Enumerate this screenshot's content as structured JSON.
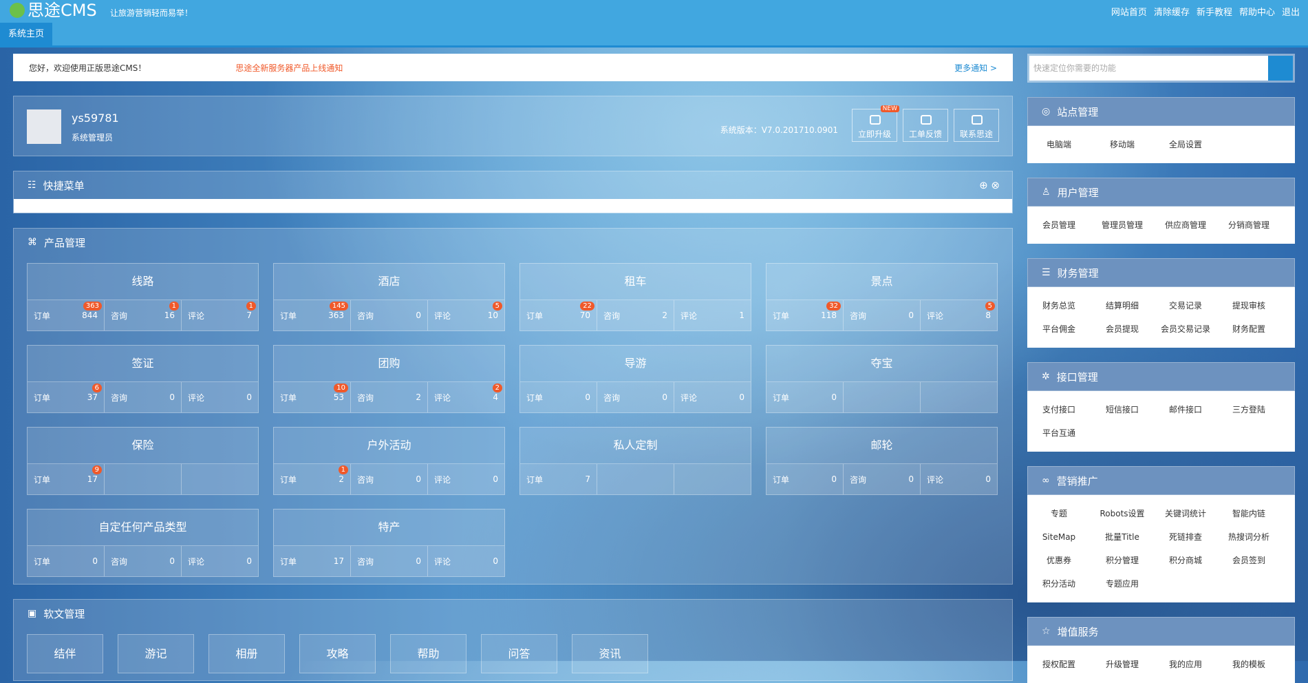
{
  "header": {
    "logo": "思途CMS",
    "slogan": "让旅游营销轻而易举！",
    "nav": [
      "网站首页",
      "清除缓存",
      "新手教程",
      "帮助中心",
      "退出"
    ],
    "tab": "系统主页"
  },
  "notice": {
    "welcome": "您好，欢迎使用正版思途CMS！",
    "news": "思途全新服务器产品上线通知",
    "more": "更多通知 >"
  },
  "search": {
    "placeholder": "快速定位你需要的功能"
  },
  "user": {
    "name": "ys59781",
    "role": "系统管理员",
    "version": "系统版本：V7.0.201710.0901",
    "badge": "NEW",
    "buttons": [
      "立即升级",
      "工单反馈",
      "联系思途"
    ]
  },
  "quick_menu": {
    "title": "快捷菜单"
  },
  "products": {
    "title": "产品管理",
    "items": [
      {
        "name": "线路",
        "stats": [
          {
            "label": "订单",
            "value": 844,
            "badge": 363
          },
          {
            "label": "咨询",
            "value": 16,
            "badge": 1
          },
          {
            "label": "评论",
            "value": 7,
            "badge": 1
          }
        ]
      },
      {
        "name": "酒店",
        "stats": [
          {
            "label": "订单",
            "value": 363,
            "badge": 145
          },
          {
            "label": "咨询",
            "value": 0
          },
          {
            "label": "评论",
            "value": 10,
            "badge": 5
          }
        ]
      },
      {
        "name": "租车",
        "stats": [
          {
            "label": "订单",
            "value": 70,
            "badge": 22
          },
          {
            "label": "咨询",
            "value": 2
          },
          {
            "label": "评论",
            "value": 1
          }
        ]
      },
      {
        "name": "景点",
        "stats": [
          {
            "label": "订单",
            "value": 118,
            "badge": 32
          },
          {
            "label": "咨询",
            "value": 0
          },
          {
            "label": "评论",
            "value": 8,
            "badge": 5
          }
        ]
      },
      {
        "name": "签证",
        "stats": [
          {
            "label": "订单",
            "value": 37,
            "badge": 6
          },
          {
            "label": "咨询",
            "value": 0
          },
          {
            "label": "评论",
            "value": 0
          }
        ]
      },
      {
        "name": "团购",
        "stats": [
          {
            "label": "订单",
            "value": 53,
            "badge": 10
          },
          {
            "label": "咨询",
            "value": 2
          },
          {
            "label": "评论",
            "value": 4,
            "badge": 2
          }
        ]
      },
      {
        "name": "导游",
        "stats": [
          {
            "label": "订单",
            "value": 0
          },
          {
            "label": "咨询",
            "value": 0
          },
          {
            "label": "评论",
            "value": 0
          }
        ]
      },
      {
        "name": "夺宝",
        "stats": [
          {
            "label": "订单",
            "value": 0
          }
        ]
      },
      {
        "name": "保险",
        "stats": [
          {
            "label": "订单",
            "value": 17,
            "badge": 9
          }
        ]
      },
      {
        "name": "户外活动",
        "stats": [
          {
            "label": "订单",
            "value": 2,
            "badge": 1
          },
          {
            "label": "咨询",
            "value": 0
          },
          {
            "label": "评论",
            "value": 0
          }
        ]
      },
      {
        "name": "私人定制",
        "stats": [
          {
            "label": "订单",
            "value": 7
          }
        ]
      },
      {
        "name": "邮轮",
        "stats": [
          {
            "label": "订单",
            "value": 0
          },
          {
            "label": "咨询",
            "value": 0
          },
          {
            "label": "评论",
            "value": 0
          }
        ]
      },
      {
        "name": "自定任何产品类型",
        "stats": [
          {
            "label": "订单",
            "value": 0
          },
          {
            "label": "咨询",
            "value": 0
          },
          {
            "label": "评论",
            "value": 0
          }
        ]
      },
      {
        "name": "特产",
        "stats": [
          {
            "label": "订单",
            "value": 17
          },
          {
            "label": "咨询",
            "value": 0
          },
          {
            "label": "评论",
            "value": 0
          }
        ]
      }
    ]
  },
  "articles": {
    "title": "软文管理",
    "items": [
      "结伴",
      "游记",
      "相册",
      "攻略",
      "帮助",
      "问答",
      "资讯"
    ]
  },
  "sidebar": [
    {
      "title": "站点管理",
      "items": [
        "电脑端",
        "移动端",
        "全局设置"
      ]
    },
    {
      "title": "用户管理",
      "items": [
        "会员管理",
        "管理员管理",
        "供应商管理",
        "分销商管理"
      ]
    },
    {
      "title": "财务管理",
      "items": [
        "财务总览",
        "结算明细",
        "交易记录",
        "提现审核",
        "平台佣金",
        "会员提现",
        "会员交易记录",
        "财务配置"
      ]
    },
    {
      "title": "接口管理",
      "items": [
        "支付接口",
        "短信接口",
        "邮件接口",
        "三方登陆",
        "平台互通"
      ]
    },
    {
      "title": "营销推广",
      "items": [
        "专题",
        "Robots设置",
        "关键词统计",
        "智能内链",
        "SiteMap",
        "批量Title",
        "死链排查",
        "热搜词分析",
        "优惠券",
        "积分管理",
        "积分商城",
        "会员签到",
        "积分活动",
        "专题应用"
      ]
    },
    {
      "title": "增值服务",
      "items": [
        "授权配置",
        "升级管理",
        "我的应用",
        "我的模板"
      ]
    }
  ]
}
